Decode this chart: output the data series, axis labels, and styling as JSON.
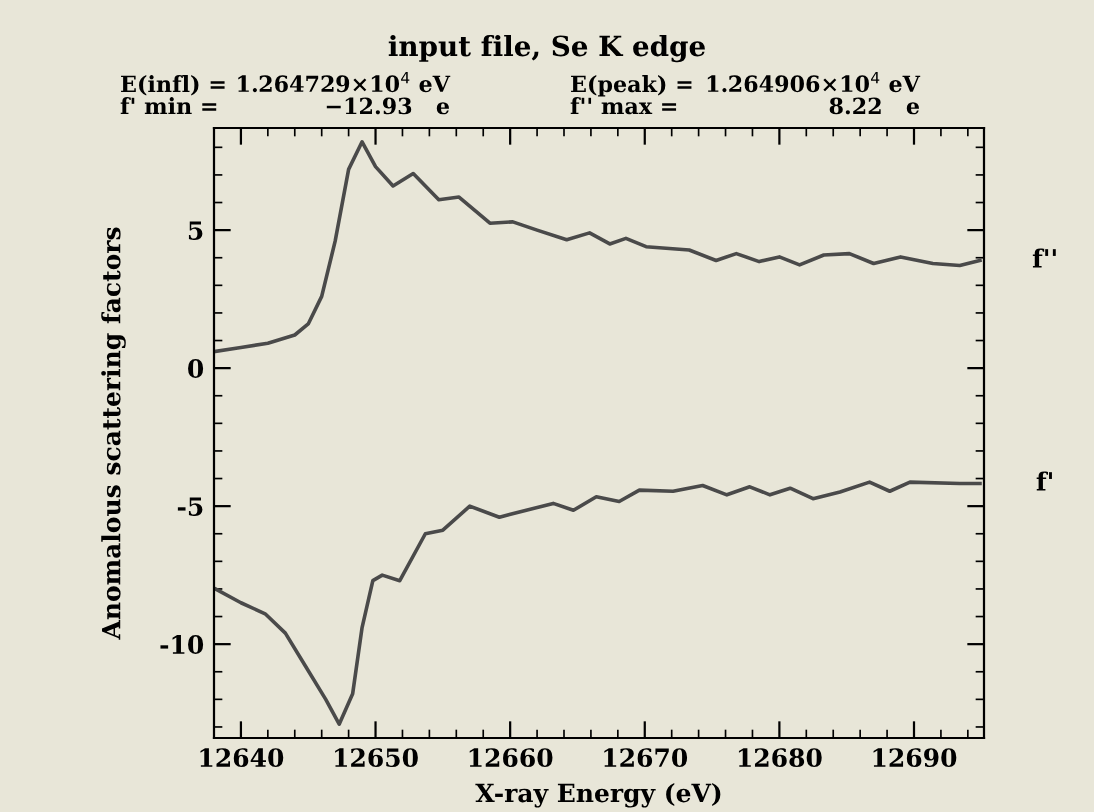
{
  "chart_data": {
    "type": "line",
    "title": "input file, Se K edge",
    "xlabel": "X-ray Energy (eV)",
    "ylabel": "Anomalous scattering factors",
    "annotations": [
      "E(infl) =",
      "1.264729×10$^{4}$ eV",
      "E(peak) =",
      "1.264906×10$^{4}$ eV",
      "f' min =",
      "−12.93   e",
      "f'' max =",
      "8.22   e"
    ],
    "series": [
      {
        "name": "f''",
        "color": "#4a4a4a",
        "x": [
          12638,
          12640,
          12642,
          12644,
          12645,
          12646,
          12647,
          12648,
          12649,
          12650,
          12651.3,
          12652.8,
          12654.7,
          12656.2,
          12658.5,
          12660.2,
          12662,
          12664.2,
          12665.9,
          12667.4,
          12668.6,
          12670.1,
          12673.3,
          12675.3,
          12676.8,
          12678.5,
          12680,
          12681.5,
          12683.3,
          12685.2,
          12687,
          12689,
          12691.4,
          12693.4,
          12694.9
        ],
        "values": [
          0.6,
          0.75,
          0.9,
          1.2,
          1.6,
          2.6,
          4.6,
          7.2,
          8.2,
          7.3,
          6.6,
          7.05,
          6.1,
          6.2,
          5.25,
          5.3,
          5.0,
          4.65,
          4.9,
          4.5,
          4.7,
          4.4,
          4.28,
          3.9,
          4.15,
          3.86,
          4.03,
          3.74,
          4.1,
          4.15,
          3.79,
          4.03,
          3.79,
          3.72,
          3.9
        ]
      },
      {
        "name": "f'",
        "color": "#4a4a4a",
        "x": [
          12638.1,
          12640,
          12641.8,
          12643.3,
          12644.8,
          12646.3,
          12647.3,
          12648.3,
          12649,
          12649.8,
          12650.5,
          12651.8,
          12653.7,
          12655,
          12657,
          12659.2,
          12661.2,
          12663.2,
          12664.7,
          12666.4,
          12668.1,
          12669.6,
          12672.1,
          12674.3,
          12676.1,
          12677.8,
          12679.3,
          12680.8,
          12682.5,
          12684.5,
          12686.7,
          12688.2,
          12689.7,
          12693.4,
          12694.9
        ],
        "values": [
          -8.0,
          -8.5,
          -8.9,
          -9.6,
          -10.8,
          -12.0,
          -12.9,
          -11.8,
          -9.4,
          -7.7,
          -7.5,
          -7.7,
          -6.0,
          -5.87,
          -5.0,
          -5.4,
          -5.15,
          -4.9,
          -5.15,
          -4.66,
          -4.83,
          -4.42,
          -4.46,
          -4.25,
          -4.59,
          -4.3,
          -4.59,
          -4.35,
          -4.73,
          -4.49,
          -4.13,
          -4.46,
          -4.13,
          -4.18,
          -4.18
        ]
      }
    ],
    "xlim": [
      12638,
      12695.2
    ],
    "xticks": [
      12640,
      12650,
      12660,
      12670,
      12680,
      12690
    ],
    "ylim": [
      -13.4,
      8.7
    ],
    "yticks": [
      -10,
      -5,
      0,
      5
    ],
    "grid": false,
    "legend": false,
    "line_style": "solid",
    "marker": "none"
  }
}
